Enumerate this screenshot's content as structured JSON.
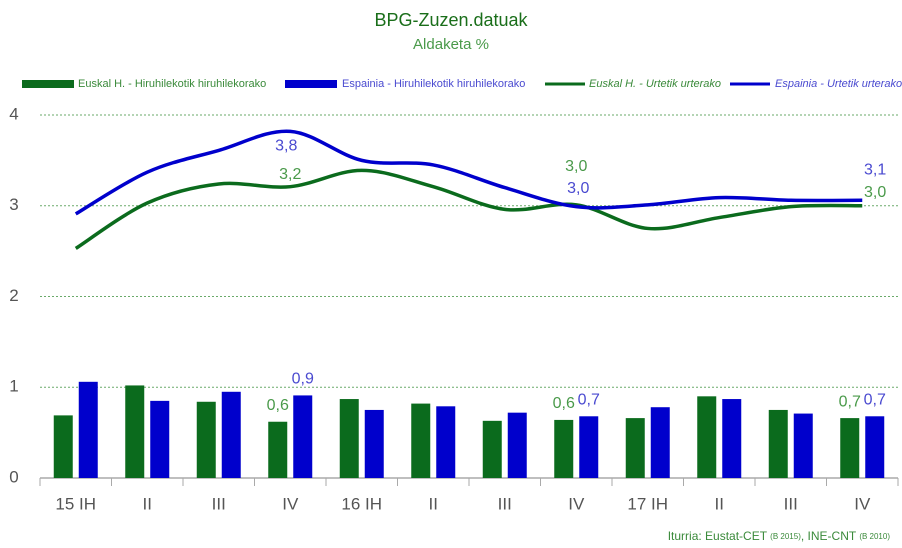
{
  "chart_data": {
    "type": "bar-line",
    "title": "BPG-Zuzen.datuak",
    "subtitle": "Aldaketa %",
    "categories": [
      "15 IH",
      "II",
      "III",
      "IV",
      "16 IH",
      "II",
      "III",
      "IV",
      "17 IH",
      "II",
      "III",
      "IV"
    ],
    "ylim": [
      0,
      4
    ],
    "yticks": [
      0,
      1,
      2,
      3,
      4
    ],
    "grid": true,
    "legend": "top",
    "series": [
      {
        "name": "Euskal H. - Hiruhilekotik hiruhilekorako",
        "kind": "bar",
        "color": "#0b6b1d",
        "values": [
          0.69,
          1.02,
          0.84,
          0.62,
          0.87,
          0.82,
          0.63,
          0.64,
          0.66,
          0.9,
          0.75,
          0.66
        ],
        "value_labels": [
          null,
          null,
          null,
          "0,6",
          null,
          null,
          null,
          "0,6",
          null,
          null,
          null,
          "0,7"
        ]
      },
      {
        "name": "Espainia - Hiruhilekotik hiruhilekorako",
        "kind": "bar",
        "color": "#0000cc",
        "values": [
          1.06,
          0.85,
          0.95,
          0.91,
          0.75,
          0.79,
          0.72,
          0.68,
          0.78,
          0.87,
          0.71,
          0.68
        ],
        "value_labels": [
          null,
          null,
          null,
          "0,9",
          null,
          null,
          null,
          "0,7",
          null,
          null,
          null,
          "0,7"
        ]
      },
      {
        "name": "Euskal H. - Urtetik urterako",
        "kind": "line",
        "color": "#0b6b1d",
        "values": [
          2.53,
          3.03,
          3.24,
          3.21,
          3.39,
          3.21,
          2.96,
          3.01,
          2.75,
          2.87,
          2.99,
          3.0
        ],
        "value_labels": [
          null,
          null,
          null,
          "3,2",
          null,
          null,
          null,
          "3,0",
          null,
          null,
          null,
          "3,0"
        ]
      },
      {
        "name": "Espainia - Urtetik urterako",
        "kind": "line",
        "color": "#0000cc",
        "values": [
          2.91,
          3.37,
          3.61,
          3.82,
          3.5,
          3.45,
          3.2,
          2.99,
          3.01,
          3.09,
          3.06,
          3.06
        ],
        "value_labels": [
          null,
          null,
          null,
          "3,8",
          null,
          null,
          null,
          "3,0",
          null,
          null,
          null,
          "3,1"
        ]
      }
    ],
    "source": [
      "Iturria: Eustat-CET ",
      "(B 2015)",
      ", INE-CNT ",
      "(B 2010)"
    ]
  }
}
